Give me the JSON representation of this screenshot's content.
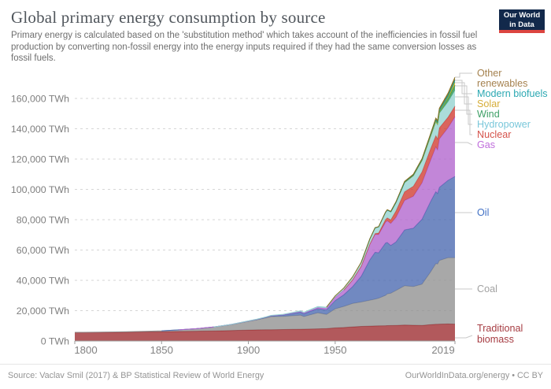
{
  "header": {
    "logo": {
      "line1": "Our World",
      "line2": "in Data"
    }
  },
  "footer": {
    "source": "Source: Vaclav Smil (2017) & BP Statistical Review of World Energy",
    "link": "OurWorldInData.org/energy • CC BY"
  },
  "chart_data": {
    "type": "area",
    "stacked": true,
    "title": "Global primary energy consumption by source",
    "subtitle": "Primary energy is calculated based on the 'substitution method' which takes account of the inefficiencies in fossil fuel production by converting non-fossil energy into the energy inputs required if they had the same conversion losses as fossil fuels.",
    "unit": "TWh",
    "xlim": [
      1800,
      2019
    ],
    "ylim": [
      0,
      160000
    ],
    "grid": "dashed-horizontal",
    "legend_position": "right",
    "x_ticks": [
      {
        "year": 1800,
        "label": "1800"
      },
      {
        "year": 1850,
        "label": "1850"
      },
      {
        "year": 1900,
        "label": "1900"
      },
      {
        "year": 1950,
        "label": "1950"
      },
      {
        "year": 2019,
        "label": "2019"
      }
    ],
    "y_ticks": [
      {
        "value": 0,
        "label": "0 TWh"
      },
      {
        "value": 20000,
        "label": "20,000 TWh"
      },
      {
        "value": 40000,
        "label": "40,000 TWh"
      },
      {
        "value": 60000,
        "label": "60,000 TWh"
      },
      {
        "value": 80000,
        "label": "80,000 TWh"
      },
      {
        "value": 100000,
        "label": "100,000 TWh"
      },
      {
        "value": 120000,
        "label": "120,000 TWh"
      },
      {
        "value": 140000,
        "label": "140,000 TWh"
      },
      {
        "value": 160000,
        "label": "160,000 TWh"
      }
    ],
    "x": [
      1800,
      1810,
      1820,
      1830,
      1840,
      1850,
      1860,
      1870,
      1880,
      1890,
      1900,
      1905,
      1910,
      1913,
      1920,
      1925,
      1930,
      1932,
      1935,
      1940,
      1945,
      1950,
      1955,
      1960,
      1965,
      1970,
      1973,
      1975,
      1979,
      1980,
      1982,
      1985,
      1990,
      1995,
      2000,
      2005,
      2008,
      2009,
      2010,
      2015,
      2019
    ],
    "series": [
      {
        "key": "biomass",
        "label": "Traditional biomass",
        "label_lines": [
          "Traditional",
          "biomass"
        ],
        "color": "#9c2a2e",
        "label_color": "#a63c42",
        "values": [
          5556,
          5650,
          5750,
          5850,
          5970,
          6111,
          6280,
          6460,
          6650,
          6920,
          7222,
          7300,
          7380,
          7430,
          7540,
          7640,
          7750,
          7790,
          7850,
          8000,
          8200,
          8611,
          8900,
          9300,
          9600,
          9800,
          9900,
          10000,
          10100,
          10150,
          10200,
          10300,
          10500,
          10400,
          10280,
          10800,
          11000,
          11050,
          11100,
          11200,
          11111
        ]
      },
      {
        "key": "coal",
        "label": "Coal",
        "label_lines": [
          "Coal"
        ],
        "color": "#909090",
        "label_color": "#a2a2a2",
        "values": [
          97,
          128,
          160,
          264,
          360,
          569,
          1060,
          1640,
          2540,
          3860,
          5728,
          6700,
          7800,
          8600,
          8700,
          9000,
          9300,
          8300,
          9200,
          10600,
          9300,
          12603,
          13900,
          15442,
          16100,
          17100,
          17700,
          18200,
          20000,
          20858,
          21300,
          23000,
          25905,
          25500,
          27160,
          34800,
          40000,
          39700,
          41977,
          43786,
          43849
        ]
      },
      {
        "key": "oil",
        "label": "Oil",
        "label_lines": [
          "Oil"
        ],
        "color": "#4968b0",
        "label_color": "#4271c5",
        "values": [
          0,
          0,
          0,
          0,
          0,
          0,
          2,
          9,
          30,
          90,
          181,
          250,
          400,
          500,
          889,
          1400,
          1900,
          1850,
          2200,
          2700,
          3000,
          5444,
          7700,
          11096,
          17000,
          26649,
          30900,
          30000,
          34500,
          34000,
          31500,
          32000,
          36851,
          38500,
          42847,
          46500,
          47500,
          46500,
          48266,
          51000,
          53620
        ]
      },
      {
        "key": "gas",
        "label": "Gas",
        "label_lines": [
          "Gas"
        ],
        "color": "#b164cd",
        "label_color": "#c06edc",
        "values": [
          0,
          0,
          0,
          0,
          0,
          0,
          0,
          1,
          10,
          30,
          64,
          90,
          140,
          170,
          233,
          330,
          500,
          490,
          600,
          800,
          1050,
          2092,
          3100,
          4472,
          6600,
          10217,
          11800,
          12000,
          13800,
          14243,
          14500,
          16200,
          19484,
          21100,
          23995,
          27200,
          29500,
          28800,
          31954,
          34700,
          39292
        ]
      },
      {
        "key": "nuclear",
        "label": "Nuclear",
        "label_lines": [
          "Nuclear"
        ],
        "color": "#d03a30",
        "label_color": "#d5534b",
        "values": [
          0,
          0,
          0,
          0,
          0,
          0,
          0,
          0,
          0,
          0,
          0,
          0,
          0,
          0,
          0,
          0,
          0,
          0,
          0,
          0,
          0,
          0,
          0,
          20,
          72,
          224,
          560,
          1000,
          1700,
          2020,
          2400,
          4200,
          5676,
          6600,
          7323,
          7600,
          7500,
          7350,
          7374,
          6970,
          7073
        ]
      },
      {
        "key": "hydropower",
        "label": "Hydropower",
        "label_lines": [
          "Hydropower"
        ],
        "color": "#93d2d0",
        "label_color": "#79c7da",
        "values": [
          0,
          0,
          0,
          0,
          0,
          0,
          0,
          0,
          0,
          20,
          48,
          80,
          130,
          160,
          250,
          350,
          450,
          470,
          550,
          650,
          740,
          926,
          1350,
          1907,
          2500,
          3333,
          3700,
          4000,
          4700,
          4972,
          5200,
          5600,
          6122,
          6900,
          7446,
          8100,
          8900,
          9000,
          9518,
          10100,
          10455
        ]
      },
      {
        "key": "wind",
        "label": "Wind",
        "label_lines": [
          "Wind"
        ],
        "color": "#289249",
        "label_color": "#3fa067",
        "values": [
          0,
          0,
          0,
          0,
          0,
          0,
          0,
          0,
          0,
          0,
          0,
          0,
          0,
          0,
          0,
          0,
          0,
          0,
          0,
          0,
          0,
          0,
          0,
          0,
          0,
          0,
          0,
          0,
          0,
          0,
          0,
          1,
          10,
          25,
          83,
          280,
          600,
          750,
          903,
          2200,
          3540
        ]
      },
      {
        "key": "solar",
        "label": "Solar",
        "label_lines": [
          "Solar"
        ],
        "color": "#dab31b",
        "label_color": "#d6ae39",
        "values": [
          0,
          0,
          0,
          0,
          0,
          0,
          0,
          0,
          0,
          0,
          0,
          0,
          0,
          0,
          0,
          0,
          0,
          0,
          0,
          0,
          0,
          0,
          0,
          0,
          0,
          0,
          0,
          0,
          0,
          0,
          0,
          0,
          0,
          1,
          3,
          10,
          30,
          50,
          91,
          650,
          1793
        ]
      },
      {
        "key": "modern_biofuels",
        "label": "Modern biofuels",
        "label_lines": [
          "Modern biofuels"
        ],
        "color": "#059a9a",
        "label_color": "#2ba8b2",
        "values": [
          0,
          0,
          0,
          0,
          0,
          0,
          0,
          0,
          0,
          0,
          0,
          0,
          0,
          0,
          0,
          0,
          0,
          0,
          0,
          0,
          0,
          0,
          0,
          0,
          0,
          30,
          45,
          60,
          90,
          100,
          120,
          160,
          250,
          330,
          420,
          700,
          1000,
          1100,
          1300,
          1500,
          1650
        ]
      },
      {
        "key": "other_renewables",
        "label": "Other renewables",
        "label_lines": [
          "Other",
          "renewables"
        ],
        "color": "#856c1a",
        "label_color": "#a5824f",
        "values": [
          0,
          0,
          0,
          0,
          0,
          0,
          0,
          0,
          0,
          0,
          0,
          0,
          0,
          0,
          0,
          0,
          0,
          0,
          0,
          0,
          0,
          20,
          30,
          50,
          70,
          100,
          130,
          150,
          220,
          250,
          280,
          350,
          500,
          600,
          700,
          850,
          1000,
          1030,
          1100,
          1400,
          1614
        ]
      }
    ]
  }
}
